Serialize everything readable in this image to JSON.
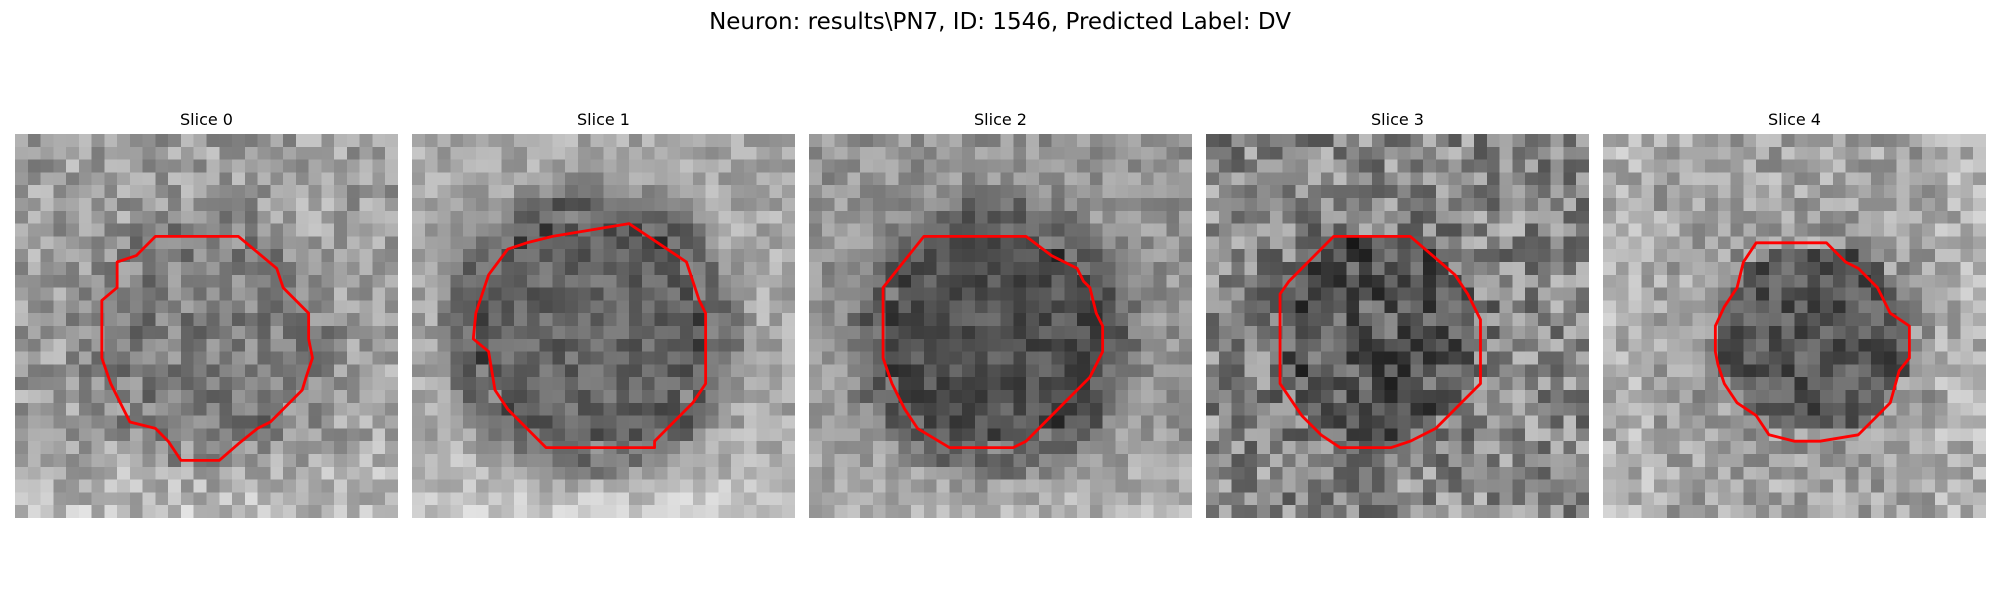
{
  "figure": {
    "title": "Neuron: results\\PN7, ID: 1546, Predicted Label: DV"
  },
  "colors": {
    "background": "#ffffff",
    "contour": "#ff0000",
    "text": "#000000"
  },
  "colormap": "gray",
  "slices": [
    {
      "title": "Slice 0"
    },
    {
      "title": "Slice 1"
    },
    {
      "title": "Slice 2"
    },
    {
      "title": "Slice 3"
    },
    {
      "title": "Slice 4"
    }
  ]
}
